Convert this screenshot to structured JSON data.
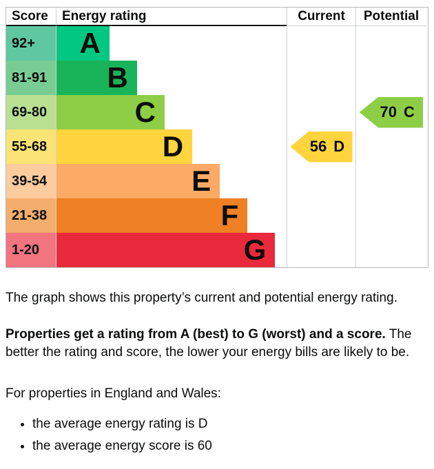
{
  "chart_data": {
    "type": "bar",
    "title": "Energy rating",
    "headers": {
      "score": "Score",
      "energy_rating": "Energy rating",
      "current": "Current",
      "potential": "Potential"
    },
    "bands": [
      {
        "letter": "A",
        "score_range": "92+",
        "width": "23%",
        "color": "#00c781",
        "tint": "#5fc7a2"
      },
      {
        "letter": "B",
        "score_range": "81-91",
        "width": "35%",
        "color": "#19b459",
        "tint": "#79cd94"
      },
      {
        "letter": "C",
        "score_range": "69-80",
        "width": "47%",
        "color": "#8dce46",
        "tint": "#b9e090"
      },
      {
        "letter": "D",
        "score_range": "55-68",
        "width": "59%",
        "color": "#ffd43c",
        "tint": "#fbe376"
      },
      {
        "letter": "E",
        "score_range": "39-54",
        "width": "71%",
        "color": "#fcaa65",
        "tint": "#fccb9e"
      },
      {
        "letter": "F",
        "score_range": "21-38",
        "width": "83%",
        "color": "#ef8023",
        "tint": "#f4ad6c"
      },
      {
        "letter": "G",
        "score_range": "1-20",
        "width": "95%",
        "color": "#e9293c",
        "tint": "#f1747f"
      }
    ],
    "current": {
      "score": "56",
      "band": "D",
      "color": "#ffd43c"
    },
    "potential": {
      "score": "70",
      "band": "C",
      "color": "#8dce46"
    }
  },
  "description": {
    "intro": "The graph shows this property’s current and potential energy rating.",
    "rating_bold": "Properties get a rating from A (best) to G (worst) and a score.",
    "rating_rest": " The better the rating and score, the lower your energy bills are likely to be.",
    "region_line": "For properties in England and Wales:",
    "bullets": [
      "the average energy rating is D",
      "the average energy score is 60"
    ]
  }
}
